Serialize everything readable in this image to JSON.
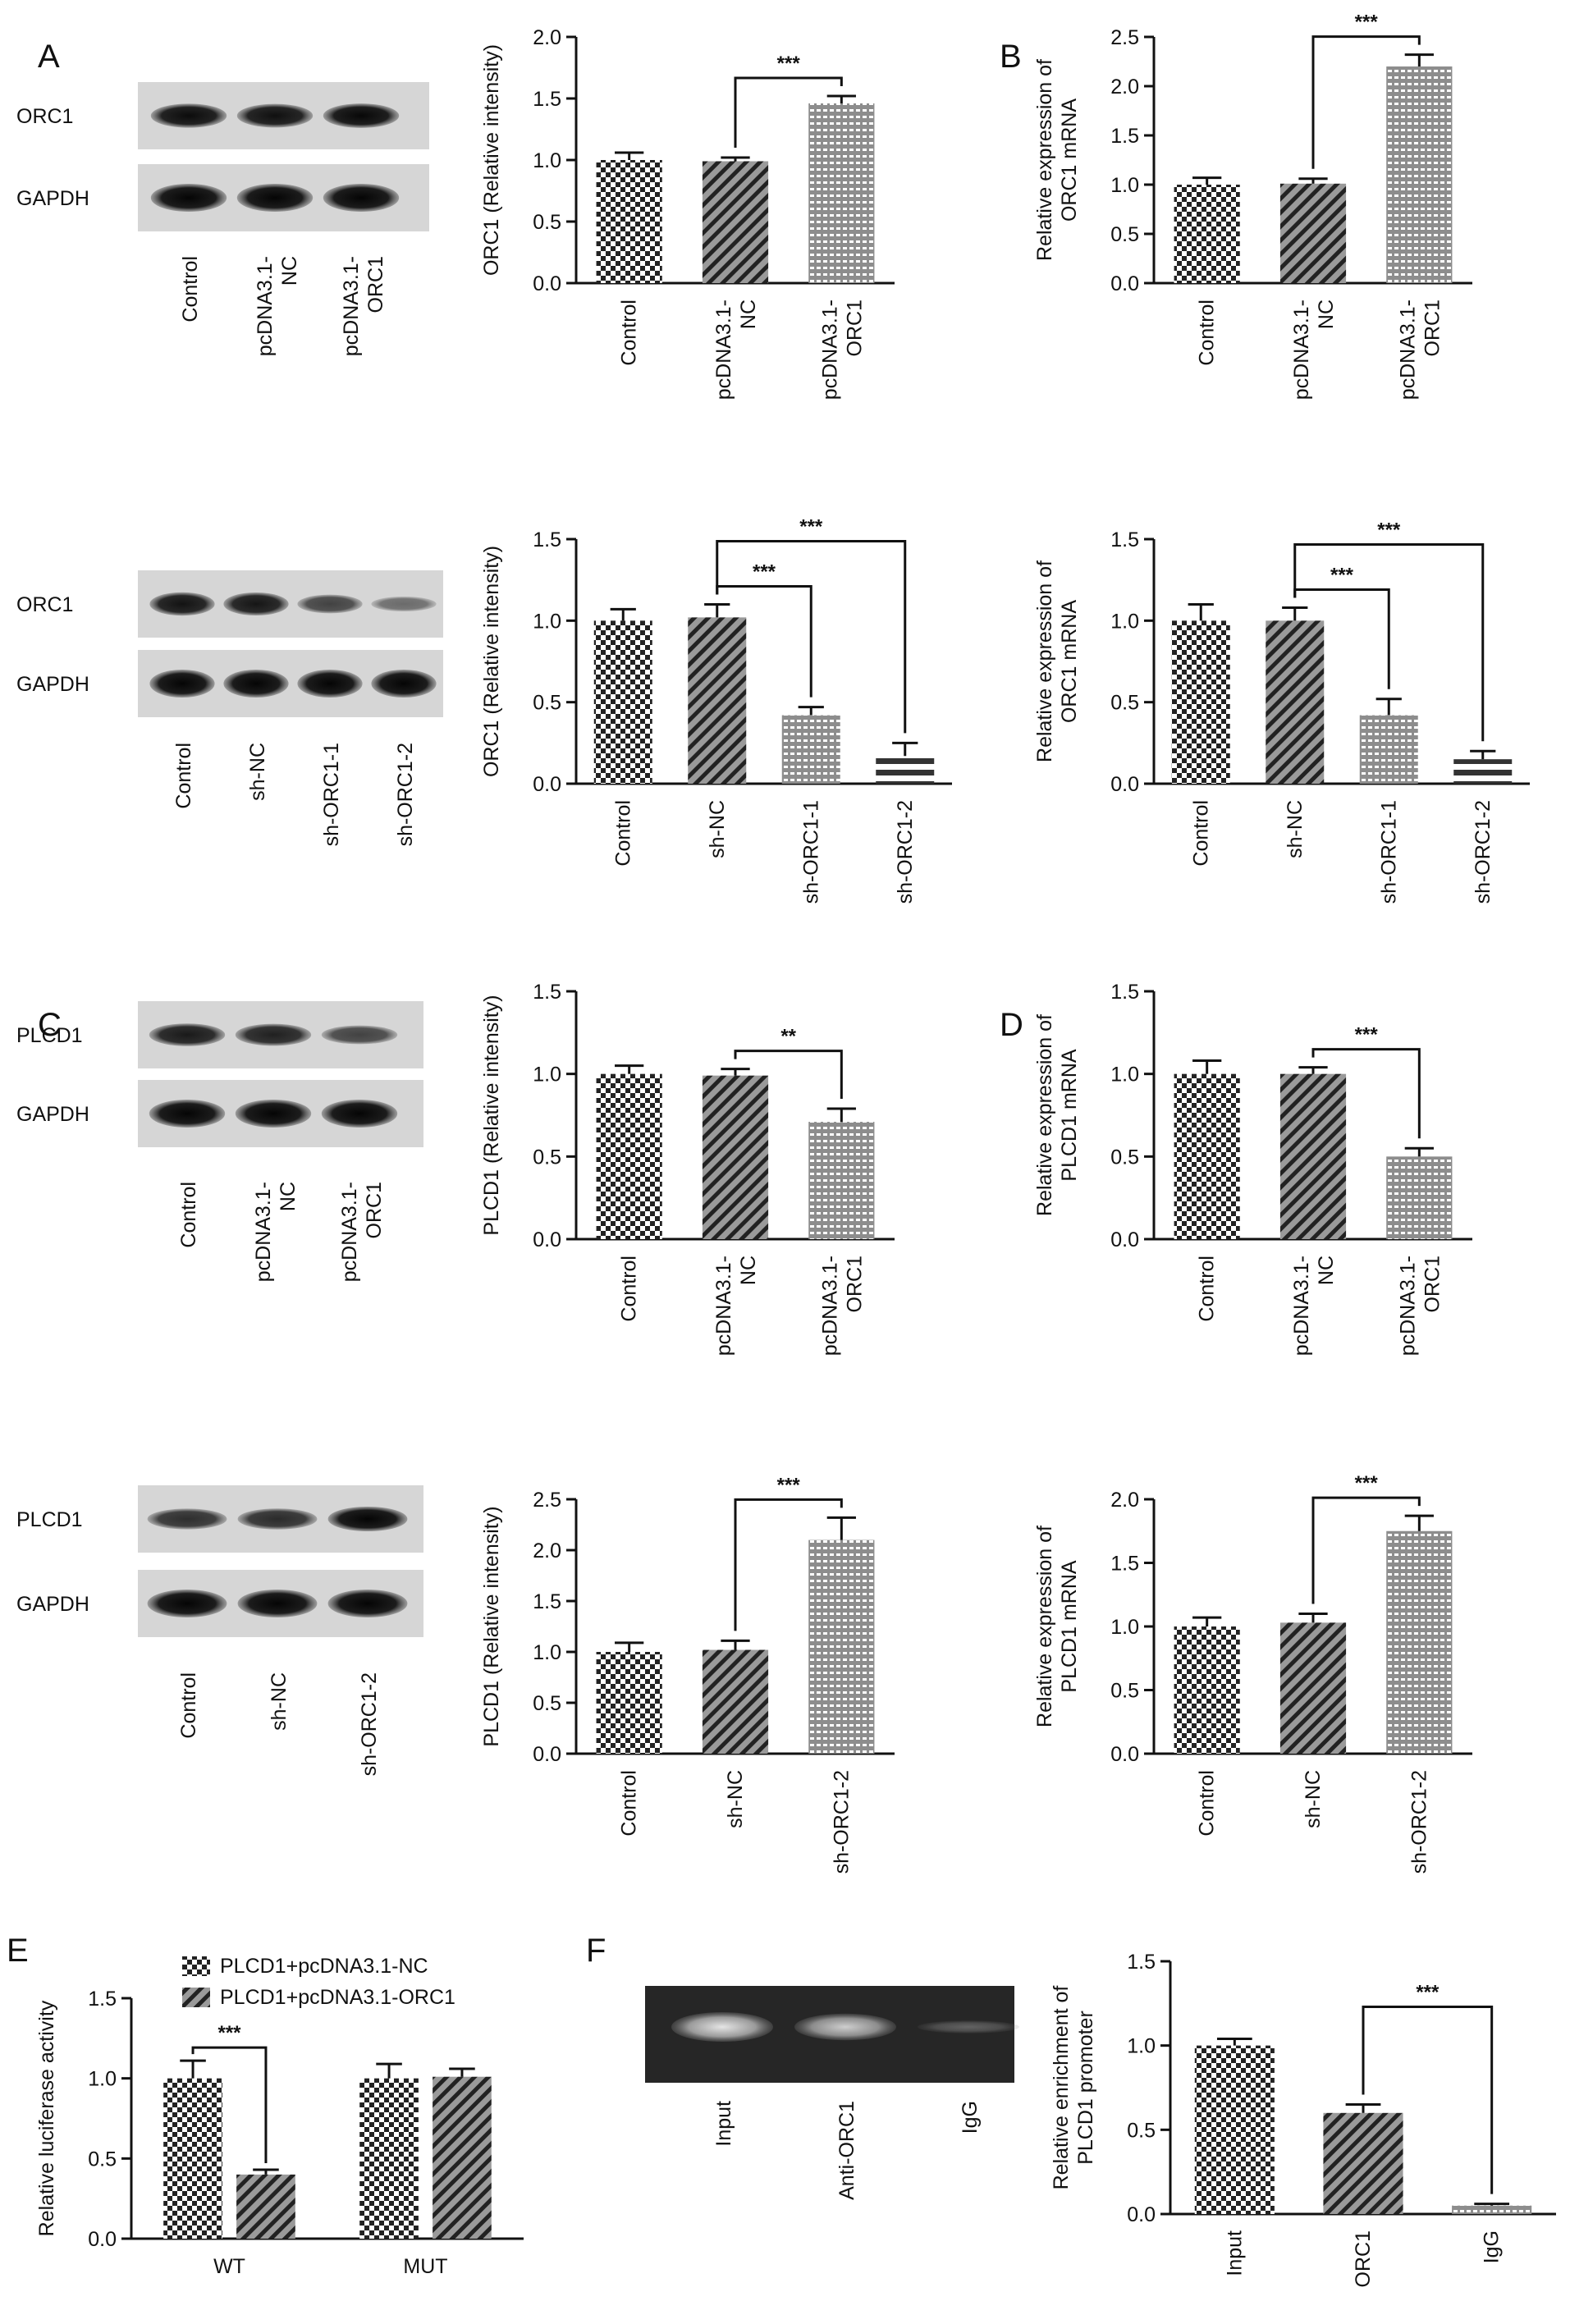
{
  "panel_letters": [
    "A",
    "B",
    "C",
    "D",
    "E",
    "F"
  ],
  "blots": [
    {
      "bands": [
        "ORC1",
        "GAPDH"
      ],
      "lanes": [
        "Control",
        "pcDNA3.1-\nNC",
        "pcDNA3.1-\nORC1"
      ],
      "intensities": [
        0.95,
        0.92,
        0.98
      ]
    },
    {
      "bands": [
        "ORC1",
        "GAPDH"
      ],
      "lanes": [
        "Control",
        "sh-NC",
        "sh-ORC1-1",
        "sh-ORC1-2"
      ],
      "intensities": [
        0.9,
        0.88,
        0.55,
        0.25
      ]
    },
    {
      "bands": [
        "PLCD1",
        "GAPDH"
      ],
      "lanes": [
        "Control",
        "pcDNA3.1-\nNC",
        "pcDNA3.1-\nORC1"
      ],
      "intensities": [
        0.85,
        0.8,
        0.55
      ]
    },
    {
      "bands": [
        "PLCD1",
        "GAPDH"
      ],
      "lanes": [
        "Control",
        "sh-NC",
        "sh-ORC1-2"
      ],
      "intensities": [
        0.7,
        0.72,
        1.0
      ]
    }
  ],
  "chip": {
    "lanes": [
      "Input",
      "Anti-ORC1",
      "IgG"
    ],
    "intensities": [
      1.0,
      0.85,
      0.15
    ]
  },
  "chart_data": [
    {
      "id": "A-top",
      "type": "bar",
      "ylabel": "ORC1 (Relative intensity)",
      "ylim": [
        0,
        2.0
      ],
      "ticks": [
        "0.0",
        "0.5",
        "1.0",
        "1.5",
        "2.0"
      ],
      "categories": [
        "Control",
        "pcDNA3.1-\nNC",
        "pcDNA3.1-\nORC1"
      ],
      "values": [
        1.0,
        0.99,
        1.46
      ],
      "errors": [
        0.06,
        0.03,
        0.06
      ],
      "significance": [
        {
          "from": 1,
          "to": 2,
          "label": "***"
        }
      ]
    },
    {
      "id": "B-top",
      "type": "bar",
      "ylabel": "Relative expression of\nORC1 mRNA",
      "ylim": [
        0,
        2.5
      ],
      "ticks": [
        "0.0",
        "0.5",
        "1.0",
        "1.5",
        "2.0",
        "2.5"
      ],
      "categories": [
        "Control",
        "pcDNA3.1-\nNC",
        "pcDNA3.1-\nORC1"
      ],
      "values": [
        1.0,
        1.01,
        2.2
      ],
      "errors": [
        0.07,
        0.05,
        0.12
      ],
      "significance": [
        {
          "from": 1,
          "to": 2,
          "label": "***"
        }
      ]
    },
    {
      "id": "A-bottom",
      "type": "bar",
      "ylabel": "ORC1 (Relative intensity)",
      "ylim": [
        0,
        1.5
      ],
      "ticks": [
        "0.0",
        "0.5",
        "1.0",
        "1.5"
      ],
      "categories": [
        "Control",
        "sh-NC",
        "sh-ORC1-1",
        "sh-ORC1-2"
      ],
      "values": [
        1.0,
        1.02,
        0.42,
        0.17
      ],
      "errors": [
        0.07,
        0.08,
        0.05,
        0.08
      ],
      "significance": [
        {
          "from": 1,
          "to": 2,
          "label": "***"
        },
        {
          "from": 1,
          "to": 3,
          "label": "***"
        }
      ]
    },
    {
      "id": "B-bottom",
      "type": "bar",
      "ylabel": "Relative expression of\nORC1 mRNA",
      "ylim": [
        0,
        1.5
      ],
      "ticks": [
        "0.0",
        "0.5",
        "1.0",
        "1.5"
      ],
      "categories": [
        "Control",
        "sh-NC",
        "sh-ORC1-1",
        "sh-ORC1-2"
      ],
      "values": [
        1.0,
        1.0,
        0.42,
        0.15
      ],
      "errors": [
        0.1,
        0.08,
        0.1,
        0.05
      ],
      "significance": [
        {
          "from": 1,
          "to": 2,
          "label": "***"
        },
        {
          "from": 1,
          "to": 3,
          "label": "***"
        }
      ]
    },
    {
      "id": "C-top",
      "type": "bar",
      "ylabel": "PLCD1 (Relative intensity)",
      "ylim": [
        0,
        1.5
      ],
      "ticks": [
        "0.0",
        "0.5",
        "1.0",
        "1.5"
      ],
      "categories": [
        "Control",
        "pcDNA3.1-\nNC",
        "pcDNA3.1-\nORC1"
      ],
      "values": [
        1.0,
        0.99,
        0.71
      ],
      "errors": [
        0.05,
        0.04,
        0.08
      ],
      "significance": [
        {
          "from": 1,
          "to": 2,
          "label": "**"
        }
      ]
    },
    {
      "id": "D-top",
      "type": "bar",
      "ylabel": "Relative expression of\nPLCD1 mRNA",
      "ylim": [
        0,
        1.5
      ],
      "ticks": [
        "0.0",
        "0.5",
        "1.0",
        "1.5"
      ],
      "categories": [
        "Control",
        "pcDNA3.1-\nNC",
        "pcDNA3.1-\nORC1"
      ],
      "values": [
        1.0,
        1.0,
        0.5
      ],
      "errors": [
        0.08,
        0.04,
        0.05
      ],
      "significance": [
        {
          "from": 1,
          "to": 2,
          "label": "***"
        }
      ]
    },
    {
      "id": "C-bottom",
      "type": "bar",
      "ylabel": "PLCD1 (Relative intensity)",
      "ylim": [
        0,
        2.5
      ],
      "ticks": [
        "0.0",
        "0.5",
        "1.0",
        "1.5",
        "2.0",
        "2.5"
      ],
      "categories": [
        "Control",
        "sh-NC",
        "sh-ORC1-2"
      ],
      "values": [
        1.0,
        1.02,
        2.1
      ],
      "errors": [
        0.09,
        0.09,
        0.22
      ],
      "significance": [
        {
          "from": 1,
          "to": 2,
          "label": "***"
        }
      ]
    },
    {
      "id": "D-bottom",
      "type": "bar",
      "ylabel": "Relative expression of\nPLCD1 mRNA",
      "ylim": [
        0,
        2.0
      ],
      "ticks": [
        "0.0",
        "0.5",
        "1.0",
        "1.5",
        "2.0"
      ],
      "categories": [
        "Control",
        "sh-NC",
        "sh-ORC1-2"
      ],
      "values": [
        1.0,
        1.03,
        1.75
      ],
      "errors": [
        0.07,
        0.07,
        0.12
      ],
      "significance": [
        {
          "from": 1,
          "to": 2,
          "label": "***"
        }
      ]
    },
    {
      "id": "E",
      "type": "bar",
      "ylabel": "Relative luciferase activity",
      "ylim": [
        0,
        1.5
      ],
      "ticks": [
        "0.0",
        "0.5",
        "1.0",
        "1.5"
      ],
      "categories": [
        "WT",
        "MUT"
      ],
      "legend": "top-left",
      "series": [
        {
          "name": "PLCD1+pcDNA3.1-NC",
          "values": [
            1.0,
            1.0
          ],
          "errors": [
            0.11,
            0.09
          ]
        },
        {
          "name": "PLCD1+pcDNA3.1-ORC1",
          "values": [
            0.4,
            1.01
          ],
          "errors": [
            0.03,
            0.05
          ]
        }
      ],
      "significance": [
        {
          "group": 0,
          "label": "***"
        }
      ]
    },
    {
      "id": "F",
      "type": "bar",
      "ylabel": "Relative enrichment of\nPLCD1 promoter",
      "ylim": [
        0,
        1.5
      ],
      "ticks": [
        "0.0",
        "0.5",
        "1.0",
        "1.5"
      ],
      "categories": [
        "Input",
        "ORC1",
        "IgG"
      ],
      "values": [
        1.0,
        0.6,
        0.05
      ],
      "errors": [
        0.04,
        0.05,
        0.01
      ],
      "significance": [
        {
          "from": 1,
          "to": 2,
          "label": "***"
        }
      ]
    }
  ]
}
